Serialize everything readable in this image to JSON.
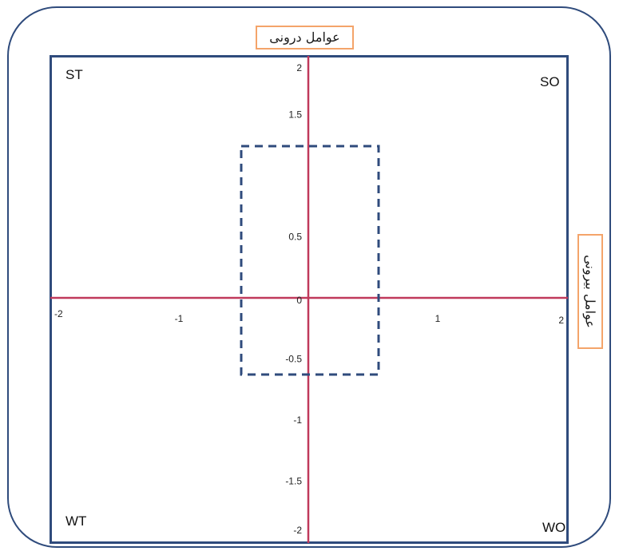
{
  "axis_titles": {
    "top": "عوامل درونی",
    "right": "عوامل بیرونی"
  },
  "quadrants": {
    "top_left": "ST",
    "top_right": "SO",
    "bottom_left": "WT",
    "bottom_right": "WO"
  },
  "colors": {
    "frame": "#2f4b7c",
    "axis": "#c0395b",
    "label_border": "#f4a46a",
    "dashed_rect": "#2f4b7c"
  },
  "chart_data": {
    "type": "scatter",
    "x_ticks": [
      "-2",
      "-1",
      "1",
      "2"
    ],
    "y_ticks": [
      "2",
      "1.5",
      "0.5",
      "0",
      "-0.5",
      "-1",
      "-1.5",
      "-2"
    ],
    "xlim": [
      -2,
      2
    ],
    "ylim": [
      -2,
      2
    ],
    "dashed_region": {
      "x_range": [
        -0.5,
        0.5
      ],
      "y_range": [
        -1,
        1
      ]
    }
  }
}
